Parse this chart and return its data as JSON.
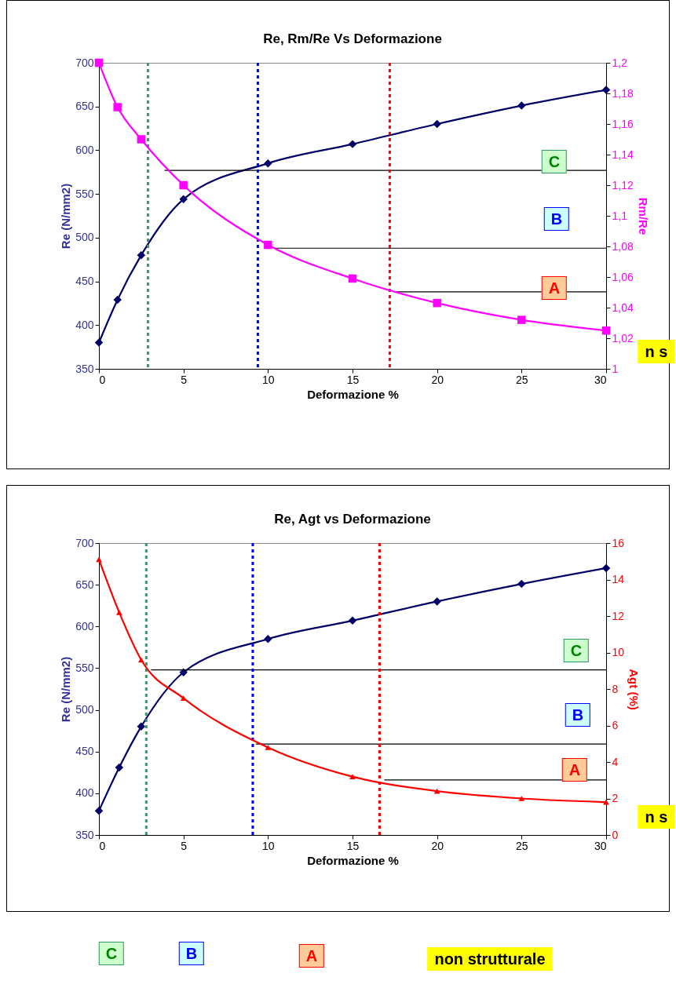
{
  "chart_data": [
    {
      "type": "line",
      "title": "Re, Rm/Re Vs Deformazione",
      "xlabel": "Deformazione %",
      "ylabel": "Re  (N/mm2)",
      "y2label": "Rm/Re",
      "xlim": [
        0,
        30
      ],
      "xticks": [
        0,
        5,
        10,
        15,
        20,
        25,
        30
      ],
      "ylim": [
        350,
        700
      ],
      "yticks": [
        350,
        400,
        450,
        500,
        550,
        600,
        650,
        700
      ],
      "y2lim": [
        1,
        1.2
      ],
      "y2ticks": [
        1,
        {
          "value": 1.02,
          "label": "1,02"
        },
        {
          "value": 1.04,
          "label": "1,04"
        },
        {
          "value": 1.06,
          "label": "1,06"
        },
        {
          "value": 1.08,
          "label": "1,08"
        },
        {
          "value": 1.1,
          "label": "1,1"
        },
        {
          "value": 1.12,
          "label": "1,12"
        },
        {
          "value": 1.14,
          "label": "1,14"
        },
        {
          "value": 1.16,
          "label": "1,16"
        },
        {
          "value": 1.18,
          "label": "1,18"
        },
        {
          "value": 1.2,
          "label": "1,2"
        }
      ],
      "grid": false,
      "series": [
        {
          "color": "#000066",
          "marker": "diamond",
          "x": [
            0,
            1.1,
            2.5,
            5,
            10,
            15,
            20,
            25,
            30
          ],
          "values": [
            380,
            429,
            480,
            544,
            585,
            607,
            630,
            651,
            669
          ]
        },
        {
          "color": "#ff00ff",
          "marker": "square",
          "axis": "y2",
          "x": [
            0,
            1.1,
            2.5,
            5,
            10,
            15,
            20,
            25,
            30
          ],
          "values": [
            1.2,
            1.171,
            1.15,
            1.12,
            1.081,
            1.059,
            1.043,
            1.032,
            1.025
          ]
        },
        {
          "type": "line",
          "color": "#000000",
          "marker": "none",
          "x": [
            3.9,
            30
          ],
          "values": [
            577,
            577
          ]
        },
        {
          "type": "line",
          "color": "#000000",
          "marker": "none",
          "x": [
            10.4,
            30
          ],
          "values": [
            488,
            488
          ]
        },
        {
          "type": "line",
          "color": "#000000",
          "marker": "none",
          "x": [
            17.6,
            30
          ],
          "values": [
            438,
            438
          ]
        }
      ],
      "ref_lines": [
        {
          "axis": "x",
          "value": 2.9,
          "color": "#339966",
          "line_style": "dotted"
        },
        {
          "axis": "x",
          "value": 9.4,
          "color": "#0000ff",
          "line_style": "dotted"
        },
        {
          "axis": "x",
          "value": 17.2,
          "color": "#ff0000",
          "line_style": "dotted"
        }
      ],
      "annotations": [
        "C",
        "B",
        "A",
        "n s"
      ]
    },
    {
      "type": "line",
      "title": "Re, Agt vs Deformazione",
      "xlabel": "Deformazione %",
      "ylabel": "Re (N/mm2)",
      "y2label": "Agt (%)",
      "xlim": [
        0,
        30
      ],
      "xticks": [
        0,
        5,
        10,
        15,
        20,
        25,
        30
      ],
      "ylim": [
        350,
        700
      ],
      "yticks": [
        350,
        400,
        450,
        500,
        550,
        600,
        650,
        700
      ],
      "y2lim": [
        0,
        16
      ],
      "y2ticks": [
        0,
        2,
        4,
        6,
        8,
        10,
        12,
        14,
        16
      ],
      "grid": false,
      "series": [
        {
          "color": "#000066",
          "marker": "diamond",
          "x": [
            0,
            1.2,
            2.5,
            5,
            10,
            15,
            20,
            25,
            30
          ],
          "values": [
            379,
            431,
            480,
            545,
            585,
            607,
            630,
            651,
            670
          ]
        },
        {
          "color": "#ff0000",
          "marker": "triangle",
          "axis": "y2",
          "x": [
            0,
            1.2,
            2.5,
            5,
            10,
            15,
            20,
            25,
            30
          ],
          "values": [
            15.1,
            12.2,
            9.6,
            7.5,
            4.8,
            3.2,
            2.4,
            2.0,
            1.8
          ]
        },
        {
          "type": "line",
          "color": "#000000",
          "marker": "none",
          "x": [
            3.1,
            30
          ],
          "values": [
            548,
            548
          ]
        },
        {
          "type": "line",
          "color": "#000000",
          "marker": "none",
          "x": [
            9.3,
            30
          ],
          "values": [
            459,
            459
          ]
        },
        {
          "type": "line",
          "color": "#000000",
          "marker": "none",
          "x": [
            16.9,
            30
          ],
          "values": [
            416,
            416
          ]
        }
      ],
      "ref_lines": [
        {
          "axis": "x",
          "value": 2.8,
          "color": "#339966",
          "line_style": "dotted"
        },
        {
          "axis": "x",
          "value": 9.1,
          "color": "#0000ff",
          "line_style": "dotted"
        },
        {
          "axis": "x",
          "value": 16.6,
          "color": "#ff0000",
          "line_style": "dotted"
        }
      ],
      "annotations": [
        "C",
        "B",
        "A",
        "n s"
      ]
    },
    {
      "type": "other",
      "annotations": [
        "C",
        "B",
        "A",
        "non strutturale"
      ]
    }
  ]
}
